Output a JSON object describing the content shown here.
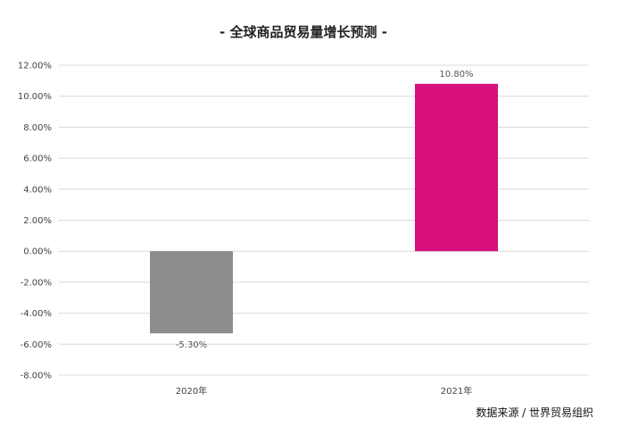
{
  "chart_data": {
    "type": "bar",
    "title": "- 全球商品贸易量增长预测 -",
    "categories": [
      "2020年",
      "2021年"
    ],
    "values": [
      -5.3,
      10.8
    ],
    "data_labels": [
      "-5.30%",
      "10.80%"
    ],
    "bar_colors": [
      "#8c8c8c",
      "#d80f7c"
    ],
    "ylim": [
      -8,
      12
    ],
    "yticks": [
      12,
      10,
      8,
      6,
      4,
      2,
      0,
      -2,
      -4,
      -6,
      -8
    ],
    "ytick_labels": [
      "12.00%",
      "10.00%",
      "8.00%",
      "6.00%",
      "4.00%",
      "2.00%",
      "0.00%",
      "-2.00%",
      "-4.00%",
      "-6.00%",
      "-8.00%"
    ],
    "xlabel": "",
    "ylabel": "",
    "grid": true,
    "legend": "none"
  },
  "source": "数据来源 / 世界贸易组织",
  "colors": {
    "grid": "#d9d9d9",
    "text": "#444444"
  }
}
